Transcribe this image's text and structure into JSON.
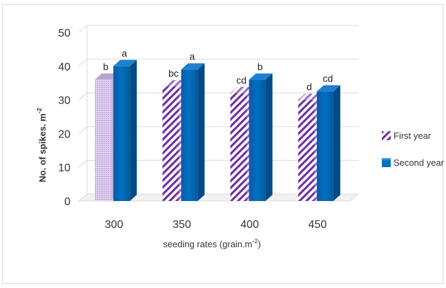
{
  "chart_data": {
    "type": "bar",
    "title": "",
    "xlabel": "seeding rates (grain.m",
    "xlabel_sup": "-2",
    "xlabel_end": ")",
    "ylabel": "No. of spikes. m",
    "ylabel_sup": "-2",
    "ylim": [
      0,
      50
    ],
    "yticks": [
      0,
      10,
      20,
      30,
      40,
      50
    ],
    "grid": true,
    "legend_position": "right",
    "categories": [
      "300",
      "350",
      "400",
      "450"
    ],
    "series": [
      {
        "name": "First year",
        "values": [
          36,
          34,
          32,
          30
        ],
        "letters": [
          "b",
          "bc",
          "cd",
          "d"
        ],
        "pattern": "diagonal-stripes",
        "color": "#7030a0"
      },
      {
        "name": "Second year",
        "values": [
          40,
          39,
          36,
          32.5
        ],
        "letters": [
          "a",
          "a",
          "b",
          "cd"
        ],
        "pattern": "solid",
        "color": "#0070c0"
      }
    ]
  }
}
